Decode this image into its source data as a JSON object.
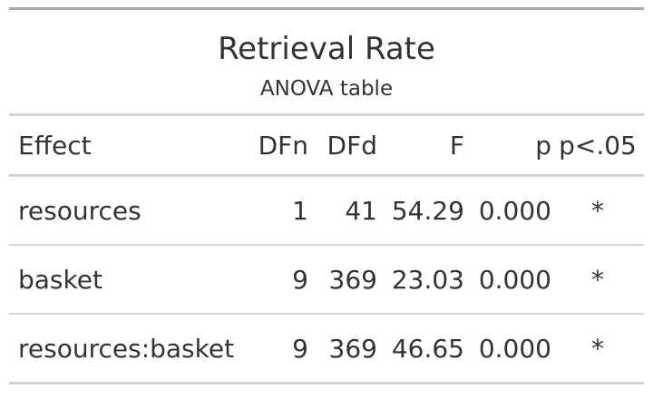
{
  "table": {
    "title": "Retrieval Rate",
    "subtitle": "ANOVA table",
    "columns": [
      "Effect",
      "DFn",
      "DFd",
      "F",
      "p",
      "p<.05"
    ],
    "rows": [
      [
        "resources",
        "1",
        "41",
        "54.29",
        "0.000",
        "*"
      ],
      [
        "basket",
        "9",
        "369",
        "23.03",
        "0.000",
        "*"
      ],
      [
        "resources:basket",
        "9",
        "369",
        "46.65",
        "0.000",
        "*"
      ]
    ]
  },
  "colors": {
    "text": "#333333",
    "top_rule": "#a8a8a8",
    "rule": "#d3d3d3",
    "background": "#ffffff"
  }
}
